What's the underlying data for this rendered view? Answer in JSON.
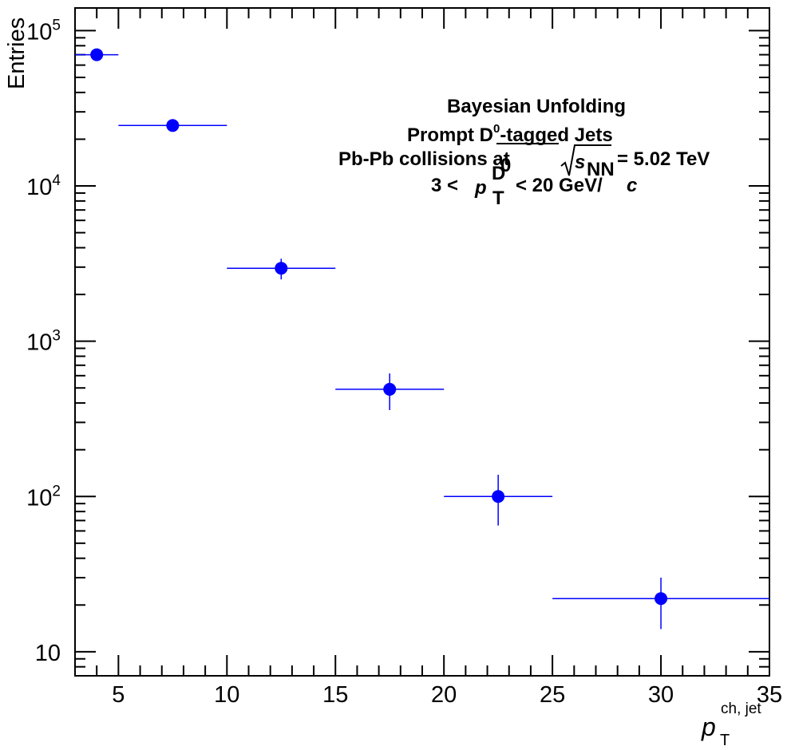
{
  "chart_data": {
    "type": "scatter",
    "ylabel": "Entries",
    "xlabel_main": "p",
    "xlabel_sub": "T",
    "xlabel_sup": "ch, jet",
    "xlim": [
      3,
      35
    ],
    "ylim": [
      7,
      140000
    ],
    "yscale": "log",
    "x_ticks": [
      "5",
      "10",
      "15",
      "20",
      "25",
      "30",
      "35"
    ],
    "y_ticks": [
      {
        "base": "10",
        "exp": "5"
      },
      {
        "base": "10",
        "exp": "4"
      },
      {
        "base": "10",
        "exp": "3"
      },
      {
        "base": "10",
        "exp": "2"
      },
      {
        "base": "10",
        "exp": ""
      }
    ],
    "grid": false,
    "marker_color": "#0000ff",
    "annotation": {
      "line1": "Bayesian Unfolding",
      "line2_a": "Prompt D",
      "line2_sup": "0",
      "line2_b": "-tagged Jets",
      "line3_a": "Pb-Pb collisions at",
      "line3_sqrt": "s",
      "line3_sub": "NN",
      "line3_b": "= 5.02 TeV",
      "line4_a": "3 <",
      "line4_p": "p",
      "line4_sub": "T",
      "line4_sup": "D",
      "line4_supsup": "0",
      "line4_b": "< 20 GeV/",
      "line4_c": "c"
    },
    "points": [
      {
        "x": 4,
        "xlo": 3,
        "xhi": 5,
        "y": 70000,
        "ylo": 70000,
        "yhi": 70000
      },
      {
        "x": 7.5,
        "xlo": 5,
        "xhi": 10,
        "y": 24500,
        "ylo": 24500,
        "yhi": 24500
      },
      {
        "x": 12.5,
        "xlo": 10,
        "xhi": 15,
        "y": 2950,
        "ylo": 2500,
        "yhi": 3400
      },
      {
        "x": 17.5,
        "xlo": 15,
        "xhi": 20,
        "y": 490,
        "ylo": 360,
        "yhi": 620
      },
      {
        "x": 22.5,
        "xlo": 20,
        "xhi": 25,
        "y": 100,
        "ylo": 65,
        "yhi": 138
      },
      {
        "x": 30,
        "xlo": 25,
        "xhi": 35,
        "y": 22,
        "ylo": 14,
        "yhi": 30
      }
    ]
  }
}
